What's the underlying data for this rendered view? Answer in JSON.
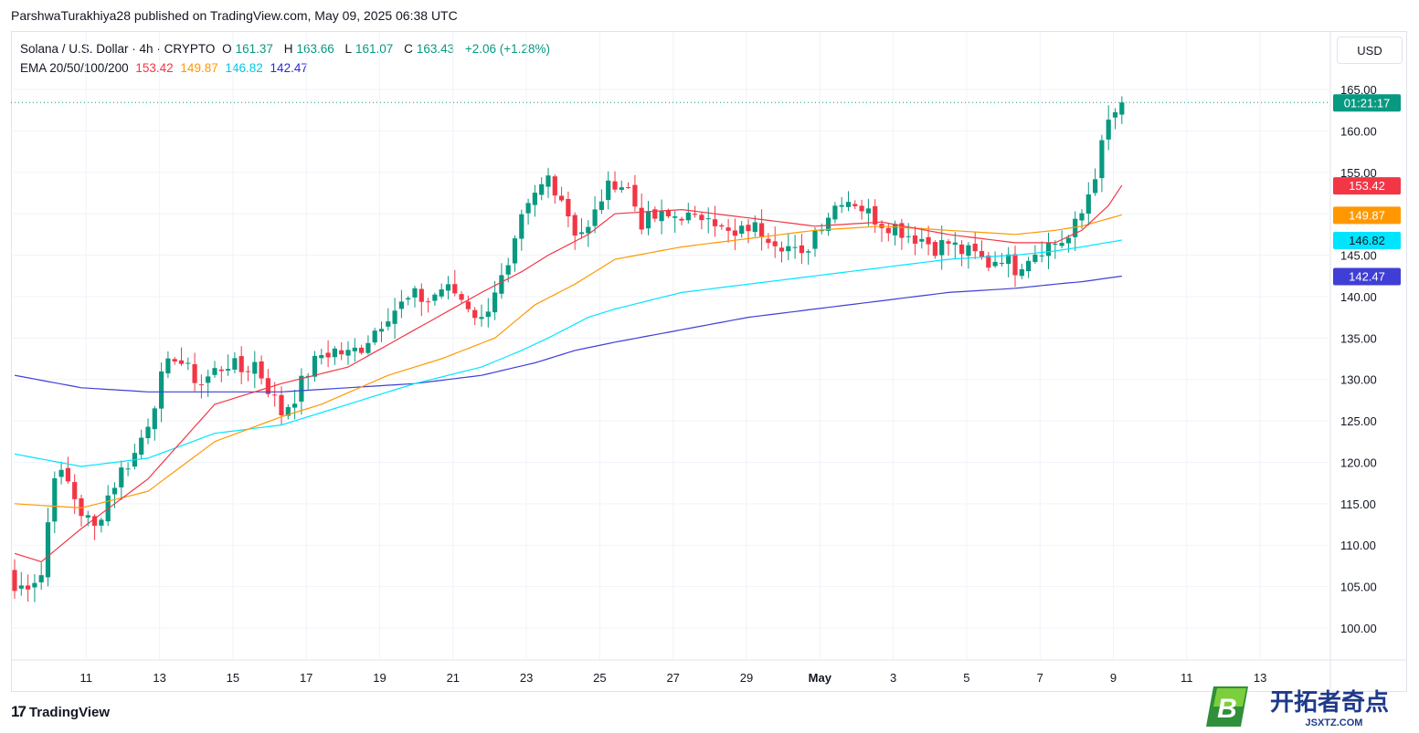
{
  "header": {
    "published": "ParshwaTurakhiya28 published on TradingView.com, May 09, 2025 06:38 UTC"
  },
  "legend": {
    "symbol": "Solana / U.S. Dollar · 4h · CRYPTO",
    "o_label": "O",
    "o": "161.37",
    "h_label": "H",
    "h": "163.66",
    "l_label": "L",
    "l": "161.07",
    "c_label": "C",
    "c": "163.43",
    "change": "+2.06 (+1.28%)",
    "ema_label": "EMA 20/50/100/200",
    "ema20": "153.42",
    "ema50": "149.87",
    "ema100": "146.82",
    "ema200": "142.47"
  },
  "currency_button": "USD",
  "countdown": "01:21:17",
  "footer": {
    "brand": "TradingView"
  },
  "watermark": {
    "text": "开拓者奇点",
    "sub": "JSXTZ.COM",
    "letter": "B"
  },
  "colors": {
    "up": "#089981",
    "down": "#f23645",
    "ema20": "#f23645",
    "ema50": "#ff9800",
    "ema100": "#00e5ff",
    "ema200": "#3f3fd6"
  },
  "chart_data": {
    "type": "candlestick",
    "timeframe": "4h",
    "yaxis_ticks": [
      "100.00",
      "105.00",
      "110.00",
      "115.00",
      "120.00",
      "125.00",
      "130.00",
      "135.00",
      "140.00",
      "145.00",
      "150.00",
      "155.00",
      "160.00",
      "165.00"
    ],
    "ylim": [
      96,
      171
    ],
    "xaxis_ticks": [
      "11",
      "13",
      "15",
      "17",
      "19",
      "21",
      "23",
      "25",
      "27",
      "29",
      "May",
      "3",
      "5",
      "7",
      "9",
      "11",
      "13"
    ],
    "last_price": 163.43,
    "price_labels": [
      {
        "name": "EMA 20",
        "value": 153.42
      },
      {
        "name": "EMA 50",
        "value": 149.87
      },
      {
        "name": "EMA 100",
        "value": 146.82
      },
      {
        "name": "EMA 200",
        "value": 142.47
      }
    ],
    "close_anchors": [
      [
        0,
        104.5
      ],
      [
        4,
        106.5
      ],
      [
        6,
        119
      ],
      [
        8,
        117.5
      ],
      [
        10,
        114
      ],
      [
        12,
        112
      ],
      [
        14,
        116
      ],
      [
        16,
        119
      ],
      [
        18,
        121
      ],
      [
        20,
        125
      ],
      [
        22,
        130
      ],
      [
        24,
        133
      ],
      [
        26,
        131
      ],
      [
        28,
        129.5
      ],
      [
        30,
        131
      ],
      [
        32,
        132
      ],
      [
        34,
        131
      ],
      [
        36,
        132
      ],
      [
        38,
        129
      ],
      [
        40,
        126
      ],
      [
        42,
        128
      ],
      [
        44,
        131
      ],
      [
        46,
        133
      ],
      [
        48,
        133.5
      ],
      [
        50,
        133
      ],
      [
        52,
        134
      ],
      [
        54,
        136
      ],
      [
        56,
        138
      ],
      [
        58,
        139
      ],
      [
        60,
        140
      ],
      [
        62,
        139.5
      ],
      [
        64,
        141
      ],
      [
        66,
        140.5
      ],
      [
        68,
        139
      ],
      [
        70,
        137
      ],
      [
        72,
        141
      ],
      [
        74,
        143
      ],
      [
        76,
        149
      ],
      [
        78,
        152
      ],
      [
        80,
        154.5
      ],
      [
        82,
        152
      ],
      [
        84,
        148
      ],
      [
        86,
        148
      ],
      [
        88,
        152
      ],
      [
        90,
        154
      ],
      [
        92,
        153
      ],
      [
        94,
        149
      ],
      [
        96,
        149.5
      ],
      [
        98,
        149.5
      ],
      [
        100,
        150
      ],
      [
        102,
        149
      ],
      [
        104,
        150.5
      ],
      [
        106,
        148
      ],
      [
        108,
        147
      ],
      [
        110,
        148.5
      ],
      [
        112,
        148
      ],
      [
        114,
        147
      ],
      [
        116,
        146
      ],
      [
        118,
        144.5
      ],
      [
        120,
        148
      ],
      [
        122,
        150
      ],
      [
        124,
        152
      ],
      [
        126,
        151.5
      ],
      [
        128,
        150
      ],
      [
        130,
        149
      ],
      [
        132,
        148.5
      ],
      [
        134,
        147.5
      ],
      [
        136,
        147
      ],
      [
        138,
        146
      ],
      [
        140,
        146.5
      ],
      [
        142,
        145.5
      ],
      [
        144,
        145
      ],
      [
        146,
        144
      ],
      [
        148,
        145
      ],
      [
        150,
        143.5
      ],
      [
        152,
        145
      ],
      [
        154,
        146
      ],
      [
        156,
        146.5
      ],
      [
        158,
        147
      ],
      [
        160,
        150
      ],
      [
        162,
        155
      ],
      [
        164,
        161
      ],
      [
        166,
        163.5
      ]
    ],
    "ema20": [
      [
        0,
        109
      ],
      [
        4,
        108
      ],
      [
        10,
        112
      ],
      [
        20,
        118
      ],
      [
        30,
        127
      ],
      [
        40,
        129.5
      ],
      [
        50,
        131.5
      ],
      [
        60,
        136
      ],
      [
        70,
        140.5
      ],
      [
        76,
        143
      ],
      [
        80,
        145
      ],
      [
        86,
        147.5
      ],
      [
        90,
        150
      ],
      [
        100,
        150.5
      ],
      [
        110,
        149.5
      ],
      [
        120,
        148.5
      ],
      [
        130,
        149
      ],
      [
        140,
        147.5
      ],
      [
        150,
        146.5
      ],
      [
        156,
        146.5
      ],
      [
        160,
        148
      ],
      [
        164,
        151
      ],
      [
        166,
        153.42
      ]
    ],
    "ema50": [
      [
        0,
        115
      ],
      [
        10,
        114.5
      ],
      [
        20,
        116.5
      ],
      [
        30,
        122.5
      ],
      [
        40,
        125.5
      ],
      [
        46,
        127
      ],
      [
        56,
        130.5
      ],
      [
        64,
        132.5
      ],
      [
        72,
        135
      ],
      [
        78,
        139
      ],
      [
        84,
        141.5
      ],
      [
        90,
        144.5
      ],
      [
        100,
        146
      ],
      [
        110,
        147
      ],
      [
        120,
        148
      ],
      [
        130,
        148.5
      ],
      [
        140,
        148
      ],
      [
        150,
        147.5
      ],
      [
        156,
        148
      ],
      [
        160,
        148.5
      ],
      [
        166,
        149.87
      ]
    ],
    "ema100": [
      [
        0,
        121
      ],
      [
        10,
        119.5
      ],
      [
        20,
        120.5
      ],
      [
        30,
        123.5
      ],
      [
        40,
        124.5
      ],
      [
        50,
        127
      ],
      [
        60,
        129.5
      ],
      [
        70,
        131.5
      ],
      [
        76,
        133.5
      ],
      [
        80,
        135
      ],
      [
        86,
        137.5
      ],
      [
        90,
        138.5
      ],
      [
        100,
        140.5
      ],
      [
        110,
        141.5
      ],
      [
        120,
        142.5
      ],
      [
        130,
        143.5
      ],
      [
        140,
        144.5
      ],
      [
        150,
        145
      ],
      [
        156,
        145.5
      ],
      [
        160,
        146
      ],
      [
        166,
        146.82
      ]
    ],
    "ema200": [
      [
        0,
        130.5
      ],
      [
        10,
        129
      ],
      [
        20,
        128.5
      ],
      [
        30,
        128.5
      ],
      [
        40,
        128.5
      ],
      [
        50,
        129
      ],
      [
        60,
        129.5
      ],
      [
        70,
        130.5
      ],
      [
        78,
        132
      ],
      [
        84,
        133.5
      ],
      [
        90,
        134.5
      ],
      [
        100,
        136
      ],
      [
        110,
        137.5
      ],
      [
        120,
        138.5
      ],
      [
        130,
        139.5
      ],
      [
        140,
        140.5
      ],
      [
        150,
        141
      ],
      [
        156,
        141.5
      ],
      [
        160,
        141.8
      ],
      [
        166,
        142.47
      ]
    ]
  }
}
